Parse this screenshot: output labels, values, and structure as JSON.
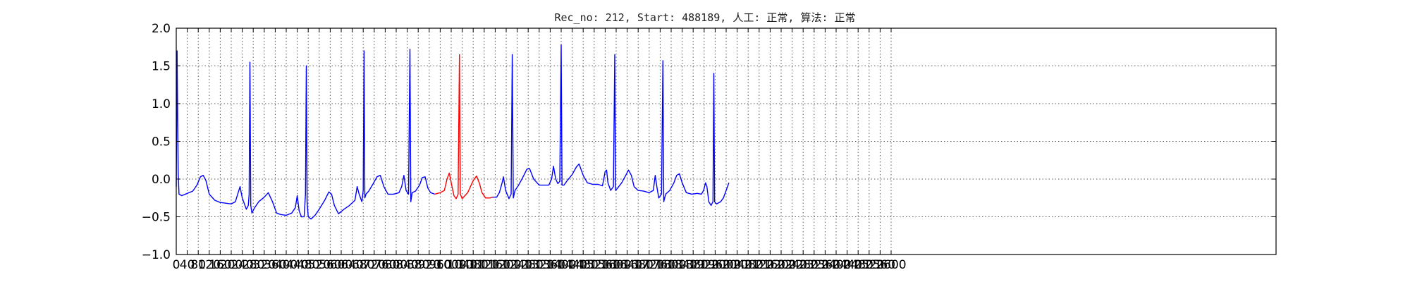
{
  "chart_data": {
    "type": "line",
    "title": "Rec_no: 212, Start: 488189, 人工: 正常, 算法: 正常",
    "xlabel": "",
    "ylabel": "",
    "xlim": [
      0,
      4000
    ],
    "ylim": [
      -1.0,
      2.0
    ],
    "grid": true,
    "y_ticks": [
      {
        "value": -1.0,
        "label": "−1.0"
      },
      {
        "value": -0.5,
        "label": "−0.5"
      },
      {
        "value": 0.0,
        "label": "0.0"
      },
      {
        "value": 0.5,
        "label": "0.5"
      },
      {
        "value": 1.0,
        "label": "1.0"
      },
      {
        "value": 1.5,
        "label": "1.5"
      },
      {
        "value": 2.0,
        "label": "2.0"
      }
    ],
    "x_ticks": [
      {
        "value": 0,
        "label": "0"
      },
      {
        "value": 40,
        "label": "40"
      },
      {
        "value": 80,
        "label": "80"
      },
      {
        "value": 120,
        "label": "120"
      },
      {
        "value": 160,
        "label": "160"
      },
      {
        "value": 200,
        "label": "200"
      },
      {
        "value": 240,
        "label": "240"
      },
      {
        "value": 280,
        "label": "280"
      },
      {
        "value": 320,
        "label": "320"
      },
      {
        "value": 360,
        "label": "360"
      },
      {
        "value": 400,
        "label": "400"
      },
      {
        "value": 440,
        "label": "440"
      },
      {
        "value": 480,
        "label": "480"
      },
      {
        "value": 520,
        "label": "520"
      },
      {
        "value": 560,
        "label": "560"
      },
      {
        "value": 600,
        "label": "600"
      },
      {
        "value": 640,
        "label": "640"
      },
      {
        "value": 680,
        "label": "680"
      },
      {
        "value": 720,
        "label": "720"
      },
      {
        "value": 760,
        "label": "760"
      },
      {
        "value": 800,
        "label": "800"
      },
      {
        "value": 840,
        "label": "840"
      },
      {
        "value": 880,
        "label": "880"
      },
      {
        "value": 920,
        "label": "920"
      },
      {
        "value": 960,
        "label": "960"
      },
      {
        "value": 1000,
        "label": "1000"
      },
      {
        "value": 1040,
        "label": "1040"
      },
      {
        "value": 1080,
        "label": "1080"
      },
      {
        "value": 1120,
        "label": "1120"
      },
      {
        "value": 1160,
        "label": "1160"
      },
      {
        "value": 1200,
        "label": "1200"
      },
      {
        "value": 1240,
        "label": "1240"
      },
      {
        "value": 1280,
        "label": "1280"
      },
      {
        "value": 1320,
        "label": "1320"
      },
      {
        "value": 1360,
        "label": "1360"
      },
      {
        "value": 1400,
        "label": "1400"
      },
      {
        "value": 1440,
        "label": "1440"
      },
      {
        "value": 1480,
        "label": "1480"
      },
      {
        "value": 1520,
        "label": "1520"
      },
      {
        "value": 1560,
        "label": "1560"
      },
      {
        "value": 1600,
        "label": "1600"
      },
      {
        "value": 1640,
        "label": "1640"
      },
      {
        "value": 1680,
        "label": "1680"
      },
      {
        "value": 1720,
        "label": "1720"
      },
      {
        "value": 1760,
        "label": "1760"
      },
      {
        "value": 1800,
        "label": "1800"
      },
      {
        "value": 1840,
        "label": "1840"
      },
      {
        "value": 1880,
        "label": "1880"
      },
      {
        "value": 1920,
        "label": "1920"
      },
      {
        "value": 1960,
        "label": "1960"
      },
      {
        "value": 2000,
        "label": "2000"
      },
      {
        "value": 2040,
        "label": "2040"
      },
      {
        "value": 2080,
        "label": "2080"
      },
      {
        "value": 2120,
        "label": "2120"
      },
      {
        "value": 2160,
        "label": "2160"
      },
      {
        "value": 2200,
        "label": "2200"
      },
      {
        "value": 2240,
        "label": "2240"
      },
      {
        "value": 2280,
        "label": "2280"
      },
      {
        "value": 2320,
        "label": "2320"
      },
      {
        "value": 2360,
        "label": "2360"
      },
      {
        "value": 2400,
        "label": "2400"
      },
      {
        "value": 2440,
        "label": "2440"
      },
      {
        "value": 2480,
        "label": "2480"
      },
      {
        "value": 2520,
        "label": "2520"
      },
      {
        "value": 2560,
        "label": "2560"
      },
      {
        "value": 2600,
        "label": "2600"
      }
    ],
    "series": [
      {
        "color": "#0000ff",
        "points": [
          [
            0,
            -0.1
          ],
          [
            3,
            1.7
          ],
          [
            7,
            0.1
          ],
          [
            10,
            -0.2
          ],
          [
            20,
            -0.22
          ],
          [
            40,
            -0.19
          ],
          [
            60,
            -0.16
          ],
          [
            75,
            -0.08
          ],
          [
            88,
            0.03
          ],
          [
            98,
            0.05
          ],
          [
            108,
            -0.02
          ],
          [
            120,
            -0.2
          ],
          [
            140,
            -0.28
          ],
          [
            160,
            -0.31
          ],
          [
            180,
            -0.32
          ],
          [
            200,
            -0.33
          ],
          [
            215,
            -0.3
          ],
          [
            225,
            -0.18
          ],
          [
            232,
            -0.1
          ],
          [
            240,
            -0.25
          ],
          [
            255,
            -0.4
          ],
          [
            262,
            -0.35
          ],
          [
            265,
            -0.2
          ],
          [
            268,
            1.55
          ],
          [
            271,
            -0.35
          ],
          [
            275,
            -0.45
          ],
          [
            285,
            -0.38
          ],
          [
            300,
            -0.3
          ],
          [
            320,
            -0.24
          ],
          [
            335,
            -0.18
          ],
          [
            350,
            -0.3
          ],
          [
            365,
            -0.45
          ],
          [
            380,
            -0.47
          ],
          [
            400,
            -0.48
          ],
          [
            420,
            -0.45
          ],
          [
            433,
            -0.38
          ],
          [
            440,
            -0.22
          ],
          [
            447,
            -0.42
          ],
          [
            455,
            -0.5
          ],
          [
            465,
            -0.5
          ],
          [
            470,
            -0.2
          ],
          [
            473,
            1.5
          ],
          [
            476,
            -0.3
          ],
          [
            480,
            -0.5
          ],
          [
            490,
            -0.53
          ],
          [
            505,
            -0.48
          ],
          [
            520,
            -0.4
          ],
          [
            540,
            -0.28
          ],
          [
            555,
            -0.17
          ],
          [
            565,
            -0.2
          ],
          [
            575,
            -0.35
          ],
          [
            590,
            -0.46
          ],
          [
            610,
            -0.4
          ],
          [
            630,
            -0.35
          ],
          [
            650,
            -0.28
          ],
          [
            658,
            -0.1
          ],
          [
            665,
            -0.2
          ],
          [
            675,
            -0.3
          ],
          [
            680,
            -0.15
          ],
          [
            683,
            1.7
          ],
          [
            686,
            -0.25
          ],
          [
            690,
            -0.2
          ],
          [
            700,
            -0.16
          ],
          [
            715,
            -0.07
          ],
          [
            730,
            0.03
          ],
          [
            742,
            0.05
          ],
          [
            755,
            -0.1
          ],
          [
            770,
            -0.2
          ],
          [
            790,
            -0.2
          ],
          [
            810,
            -0.18
          ],
          [
            820,
            -0.1
          ],
          [
            828,
            0.05
          ],
          [
            836,
            -0.15
          ],
          [
            845,
            -0.2
          ],
          [
            850,
            1.72
          ],
          [
            853,
            -0.3
          ],
          [
            858,
            -0.18
          ],
          [
            870,
            -0.16
          ],
          [
            885,
            -0.08
          ],
          [
            895,
            0.02
          ],
          [
            905,
            0.03
          ],
          [
            915,
            -0.12
          ],
          [
            925,
            -0.18
          ],
          [
            940,
            -0.2
          ]
        ]
      },
      {
        "color": "#ff0000",
        "points": [
          [
            940,
            -0.2
          ],
          [
            960,
            -0.18
          ],
          [
            975,
            -0.15
          ],
          [
            985,
            0.0
          ],
          [
            993,
            0.08
          ],
          [
            1000,
            -0.05
          ],
          [
            1010,
            -0.22
          ],
          [
            1018,
            -0.26
          ],
          [
            1025,
            -0.2
          ],
          [
            1030,
            1.65
          ],
          [
            1033,
            -0.2
          ],
          [
            1040,
            -0.26
          ],
          [
            1050,
            -0.22
          ],
          [
            1060,
            -0.18
          ],
          [
            1070,
            -0.1
          ],
          [
            1080,
            -0.02
          ],
          [
            1092,
            0.04
          ],
          [
            1102,
            -0.05
          ],
          [
            1112,
            -0.18
          ],
          [
            1125,
            -0.25
          ],
          [
            1140,
            -0.25
          ],
          [
            1150,
            -0.24
          ]
        ]
      },
      {
        "color": "#0000ff",
        "points": [
          [
            1150,
            -0.24
          ],
          [
            1165,
            -0.24
          ],
          [
            1175,
            -0.18
          ],
          [
            1185,
            -0.05
          ],
          [
            1190,
            0.03
          ],
          [
            1198,
            -0.15
          ],
          [
            1210,
            -0.26
          ],
          [
            1218,
            -0.2
          ],
          [
            1222,
            1.65
          ],
          [
            1226,
            -0.25
          ],
          [
            1232,
            -0.15
          ],
          [
            1245,
            -0.08
          ],
          [
            1260,
            0.02
          ],
          [
            1275,
            0.13
          ],
          [
            1285,
            0.14
          ],
          [
            1300,
            0.0
          ],
          [
            1320,
            -0.08
          ],
          [
            1340,
            -0.08
          ],
          [
            1355,
            -0.08
          ],
          [
            1365,
            0.0
          ],
          [
            1372,
            0.17
          ],
          [
            1380,
            0.0
          ],
          [
            1388,
            -0.06
          ],
          [
            1395,
            -0.03
          ],
          [
            1400,
            1.78
          ],
          [
            1403,
            -0.08
          ],
          [
            1410,
            -0.08
          ],
          [
            1420,
            -0.03
          ],
          [
            1440,
            0.06
          ],
          [
            1455,
            0.16
          ],
          [
            1465,
            0.2
          ],
          [
            1480,
            0.05
          ],
          [
            1495,
            -0.05
          ],
          [
            1515,
            -0.07
          ],
          [
            1535,
            -0.07
          ],
          [
            1550,
            -0.09
          ],
          [
            1560,
            0.1
          ],
          [
            1565,
            0.12
          ],
          [
            1570,
            -0.05
          ],
          [
            1580,
            -0.15
          ],
          [
            1590,
            -0.1
          ],
          [
            1595,
            1.65
          ],
          [
            1598,
            -0.15
          ],
          [
            1605,
            -0.12
          ],
          [
            1620,
            -0.05
          ],
          [
            1635,
            0.05
          ],
          [
            1645,
            0.12
          ],
          [
            1655,
            0.05
          ],
          [
            1665,
            -0.1
          ],
          [
            1680,
            -0.15
          ],
          [
            1700,
            -0.16
          ],
          [
            1720,
            -0.18
          ],
          [
            1735,
            -0.15
          ],
          [
            1742,
            0.05
          ],
          [
            1748,
            -0.1
          ],
          [
            1755,
            -0.25
          ],
          [
            1765,
            -0.2
          ],
          [
            1770,
            1.57
          ],
          [
            1773,
            -0.3
          ],
          [
            1780,
            -0.2
          ],
          [
            1795,
            -0.15
          ],
          [
            1810,
            -0.05
          ],
          [
            1820,
            0.05
          ],
          [
            1830,
            0.07
          ],
          [
            1840,
            -0.05
          ],
          [
            1855,
            -0.18
          ],
          [
            1875,
            -0.2
          ],
          [
            1895,
            -0.19
          ],
          [
            1910,
            -0.2
          ],
          [
            1918,
            -0.15
          ],
          [
            1925,
            -0.05
          ],
          [
            1930,
            -0.1
          ],
          [
            1937,
            -0.3
          ],
          [
            1945,
            -0.35
          ],
          [
            1952,
            -0.3
          ],
          [
            1955,
            1.4
          ],
          [
            1958,
            -0.3
          ],
          [
            1965,
            -0.33
          ],
          [
            1980,
            -0.3
          ],
          [
            1990,
            -0.25
          ],
          [
            2000,
            -0.15
          ],
          [
            2010,
            -0.05
          ]
        ]
      }
    ]
  }
}
